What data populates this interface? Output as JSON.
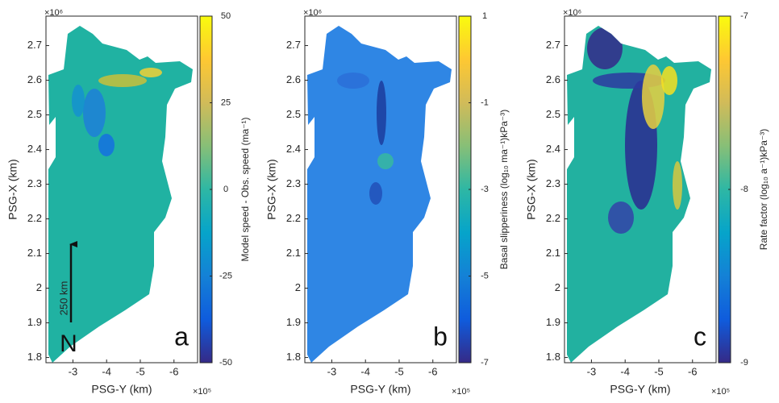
{
  "chart_data": [
    {
      "type": "map",
      "xlabel": "PSG-Y (km)",
      "ylabel": "PSG-X (km)",
      "x_exponent": "×10⁵",
      "y_exponent": "×10⁶",
      "xlim": [
        -2.2,
        -6.7
      ],
      "ylim": [
        1.785,
        2.785
      ],
      "xticks": [
        -3,
        -4,
        -5,
        -6
      ],
      "yticks": [
        1.8,
        1.9,
        2,
        2.1,
        2.2,
        2.3,
        2.4,
        2.5,
        2.6,
        2.7
      ],
      "colorbar_label": "Model speed - Obs. speed (ma⁻¹)",
      "clim": [
        -50,
        50
      ],
      "cticks": [
        -50,
        -25,
        0,
        25,
        50
      ],
      "color": "#20b2a2",
      "panel_label": "a",
      "annotations": [
        "250 km",
        "N"
      ],
      "colormap": [
        "#352a87",
        "#0f5cdd",
        "#1481d6",
        "#06a4ca",
        "#2eb7a4",
        "#87bf77",
        "#d1bb59",
        "#fec832",
        "#f9fb0e"
      ]
    },
    {
      "type": "map",
      "xlabel": "PSG-Y (km)",
      "ylabel": "PSG-X (km)",
      "x_exponent": "×10⁵",
      "y_exponent": "×10⁶",
      "xlim": [
        -2.2,
        -6.7
      ],
      "ylim": [
        1.785,
        2.785
      ],
      "xticks": [
        -3,
        -4,
        -5,
        -6
      ],
      "yticks": [
        1.8,
        1.9,
        2,
        2.1,
        2.2,
        2.3,
        2.4,
        2.5,
        2.6,
        2.7
      ],
      "colorbar_label": "Basal slipperiness (log₁₀ ma⁻¹)kPa⁻³)",
      "clim": [
        -7,
        1
      ],
      "cticks": [
        -7,
        -5,
        -3,
        -1,
        1
      ],
      "color": "#2f86e4",
      "panel_label": "b",
      "colormap": [
        "#352a87",
        "#0f5cdd",
        "#1481d6",
        "#06a4ca",
        "#2eb7a4",
        "#87bf77",
        "#d1bb59",
        "#fec832",
        "#f9fb0e"
      ]
    },
    {
      "type": "map",
      "xlabel": "PSG-Y (km)",
      "ylabel": "PSG-X (km)",
      "x_exponent": "×10⁵",
      "y_exponent": "×10⁶",
      "xlim": [
        -2.2,
        -6.7
      ],
      "ylim": [
        1.785,
        2.785
      ],
      "xticks": [
        -3,
        -4,
        -5,
        -6
      ],
      "yticks": [
        1.8,
        1.9,
        2,
        2.1,
        2.2,
        2.3,
        2.4,
        2.5,
        2.6,
        2.7
      ],
      "colorbar_label": "Rate factor (log₁₀ a⁻¹)kPa⁻³)",
      "clim": [
        -9,
        -7
      ],
      "cticks": [
        -9,
        -8,
        -7
      ],
      "color": "#22b1a0",
      "panel_label": "c",
      "colormap": [
        "#352a87",
        "#0f5cdd",
        "#1481d6",
        "#06a4ca",
        "#2eb7a4",
        "#87bf77",
        "#d1bb59",
        "#fec832",
        "#f9fb0e"
      ]
    }
  ]
}
